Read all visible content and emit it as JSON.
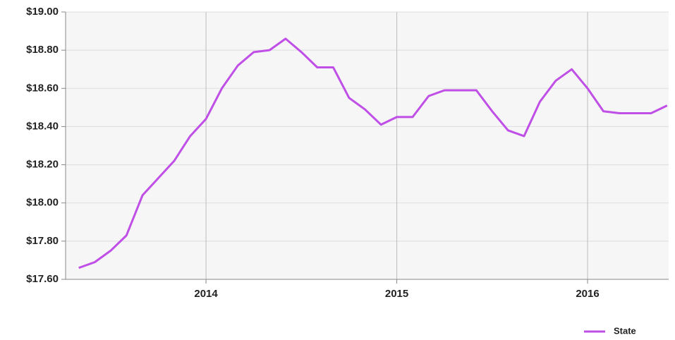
{
  "chart_data": {
    "type": "line",
    "x": [
      2013.333,
      2013.417,
      2013.5,
      2013.583,
      2013.667,
      2013.75,
      2013.833,
      2013.917,
      2014,
      2014.083,
      2014.167,
      2014.25,
      2014.333,
      2014.417,
      2014.5,
      2014.583,
      2014.667,
      2014.75,
      2014.833,
      2014.917,
      2015,
      2015.083,
      2015.167,
      2015.25,
      2015.333,
      2015.417,
      2015.5,
      2015.583,
      2015.667,
      2015.75,
      2015.833,
      2015.917,
      2016,
      2016.083,
      2016.167,
      2016.25,
      2016.333,
      2016.417
    ],
    "series": [
      {
        "name": "State",
        "color": "#bf4fe6",
        "values": [
          17.66,
          17.69,
          17.75,
          17.83,
          18.04,
          18.13,
          18.22,
          18.35,
          18.44,
          18.6,
          18.72,
          18.79,
          18.8,
          18.86,
          18.79,
          18.71,
          18.71,
          18.55,
          18.49,
          18.41,
          18.45,
          18.45,
          18.56,
          18.59,
          18.59,
          18.59,
          18.48,
          18.38,
          18.35,
          18.53,
          18.64,
          18.7,
          18.6,
          18.48,
          18.47,
          18.47,
          18.47,
          18.51
        ]
      }
    ],
    "xlim": [
      2013.264,
      2016.425
    ],
    "xticks": [
      2014,
      2015,
      2016
    ],
    "ylim": [
      17.6,
      19.0
    ],
    "yticks": [
      {
        "value": 17.6,
        "label": "$17.60"
      },
      {
        "value": 17.8,
        "label": "$17.80"
      },
      {
        "value": 18.0,
        "label": "$18.00"
      },
      {
        "value": 18.2,
        "label": "$18.20"
      },
      {
        "value": 18.4,
        "label": "$18.40"
      },
      {
        "value": 18.6,
        "label": "$18.60"
      },
      {
        "value": 18.8,
        "label": "$18.80"
      },
      {
        "value": 19.0,
        "label": "$19.00"
      }
    ],
    "grid": true,
    "legend": "bottom-right"
  }
}
